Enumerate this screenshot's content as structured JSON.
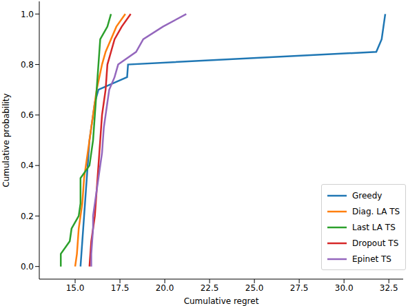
{
  "chart_data": {
    "type": "line",
    "x_label": "Cumulative regret",
    "y_label": "Cumulative probability",
    "xlim": [
      13.0,
      33.3
    ],
    "ylim": [
      -0.05,
      1.05
    ],
    "xticks": [
      {
        "value": 15,
        "label": "15.0"
      },
      {
        "value": 17.5,
        "label": "17.5"
      },
      {
        "value": 20,
        "label": "20.0"
      },
      {
        "value": 22.5,
        "label": "22.5"
      },
      {
        "value": 25,
        "label": "25.0"
      },
      {
        "value": 27.5,
        "label": "27.5"
      },
      {
        "value": 30,
        "label": "30.0"
      },
      {
        "value": 32.5,
        "label": "32.5"
      }
    ],
    "yticks": [
      {
        "value": 0,
        "label": "0.0"
      },
      {
        "value": 0.2,
        "label": "0.2"
      },
      {
        "value": 0.4,
        "label": "0.4"
      },
      {
        "value": 0.6,
        "label": "0.6"
      },
      {
        "value": 0.8,
        "label": "0.8"
      },
      {
        "value": 1,
        "label": "1.0"
      }
    ],
    "grid": true,
    "legend": "lower right",
    "series": [
      {
        "name": "Greedy",
        "color": "#1f77b4",
        "x": [
          15.3,
          15.35,
          15.4,
          15.45,
          15.5,
          15.55,
          15.6,
          15.65,
          15.7,
          15.75,
          15.8,
          15.9,
          16.0,
          16.1,
          16.3,
          17.9,
          17.95,
          31.8,
          32.1,
          32.2,
          32.3
        ],
        "values": [
          0,
          0.05,
          0.1,
          0.15,
          0.2,
          0.25,
          0.3,
          0.35,
          0.4,
          0.45,
          0.5,
          0.55,
          0.6,
          0.65,
          0.7,
          0.75,
          0.8,
          0.85,
          0.9,
          0.95,
          1.0
        ]
      },
      {
        "name": "Diag. LA TS",
        "color": "#ff7f0e",
        "x": [
          15.0,
          15.1,
          15.15,
          15.2,
          15.3,
          15.4,
          15.45,
          15.5,
          15.6,
          15.7,
          15.8,
          15.9,
          16.0,
          16.1,
          16.2,
          16.35,
          16.5,
          16.7,
          17.0,
          17.3,
          17.8
        ],
        "values": [
          0,
          0.05,
          0.1,
          0.15,
          0.2,
          0.25,
          0.3,
          0.35,
          0.4,
          0.45,
          0.5,
          0.55,
          0.6,
          0.65,
          0.7,
          0.75,
          0.8,
          0.85,
          0.9,
          0.95,
          1.0
        ]
      },
      {
        "name": "Last LA TS",
        "color": "#2ca02c",
        "x": [
          14.2,
          14.2,
          14.7,
          14.8,
          15.2,
          15.3,
          15.3,
          15.3,
          15.8,
          15.9,
          16.0,
          16.05,
          16.1,
          16.15,
          16.2,
          16.25,
          16.3,
          16.35,
          16.4,
          16.8,
          17.0
        ],
        "values": [
          0,
          0.05,
          0.1,
          0.15,
          0.2,
          0.25,
          0.3,
          0.35,
          0.4,
          0.45,
          0.5,
          0.55,
          0.6,
          0.65,
          0.7,
          0.75,
          0.8,
          0.85,
          0.9,
          0.95,
          1.0
        ]
      },
      {
        "name": "Dropout TS",
        "color": "#d62728",
        "x": [
          15.8,
          15.85,
          15.9,
          16.0,
          16.1,
          16.15,
          16.2,
          16.25,
          16.3,
          16.35,
          16.4,
          16.45,
          16.5,
          16.6,
          16.7,
          16.75,
          16.8,
          17.0,
          17.2,
          17.6,
          18.1
        ],
        "values": [
          0,
          0.05,
          0.1,
          0.15,
          0.2,
          0.25,
          0.3,
          0.35,
          0.4,
          0.45,
          0.5,
          0.55,
          0.6,
          0.65,
          0.7,
          0.75,
          0.8,
          0.85,
          0.9,
          0.95,
          1.0
        ]
      },
      {
        "name": "Epinet TS",
        "color": "#9467bd",
        "x": [
          15.9,
          15.9,
          15.95,
          16.0,
          16.0,
          16.1,
          16.2,
          16.3,
          16.4,
          16.5,
          16.55,
          16.6,
          16.7,
          16.8,
          16.9,
          17.2,
          17.4,
          18.4,
          18.8,
          19.9,
          21.2
        ],
        "values": [
          0,
          0.05,
          0.1,
          0.15,
          0.2,
          0.25,
          0.3,
          0.35,
          0.4,
          0.45,
          0.5,
          0.55,
          0.6,
          0.65,
          0.7,
          0.75,
          0.8,
          0.85,
          0.9,
          0.95,
          1.0
        ]
      }
    ]
  }
}
